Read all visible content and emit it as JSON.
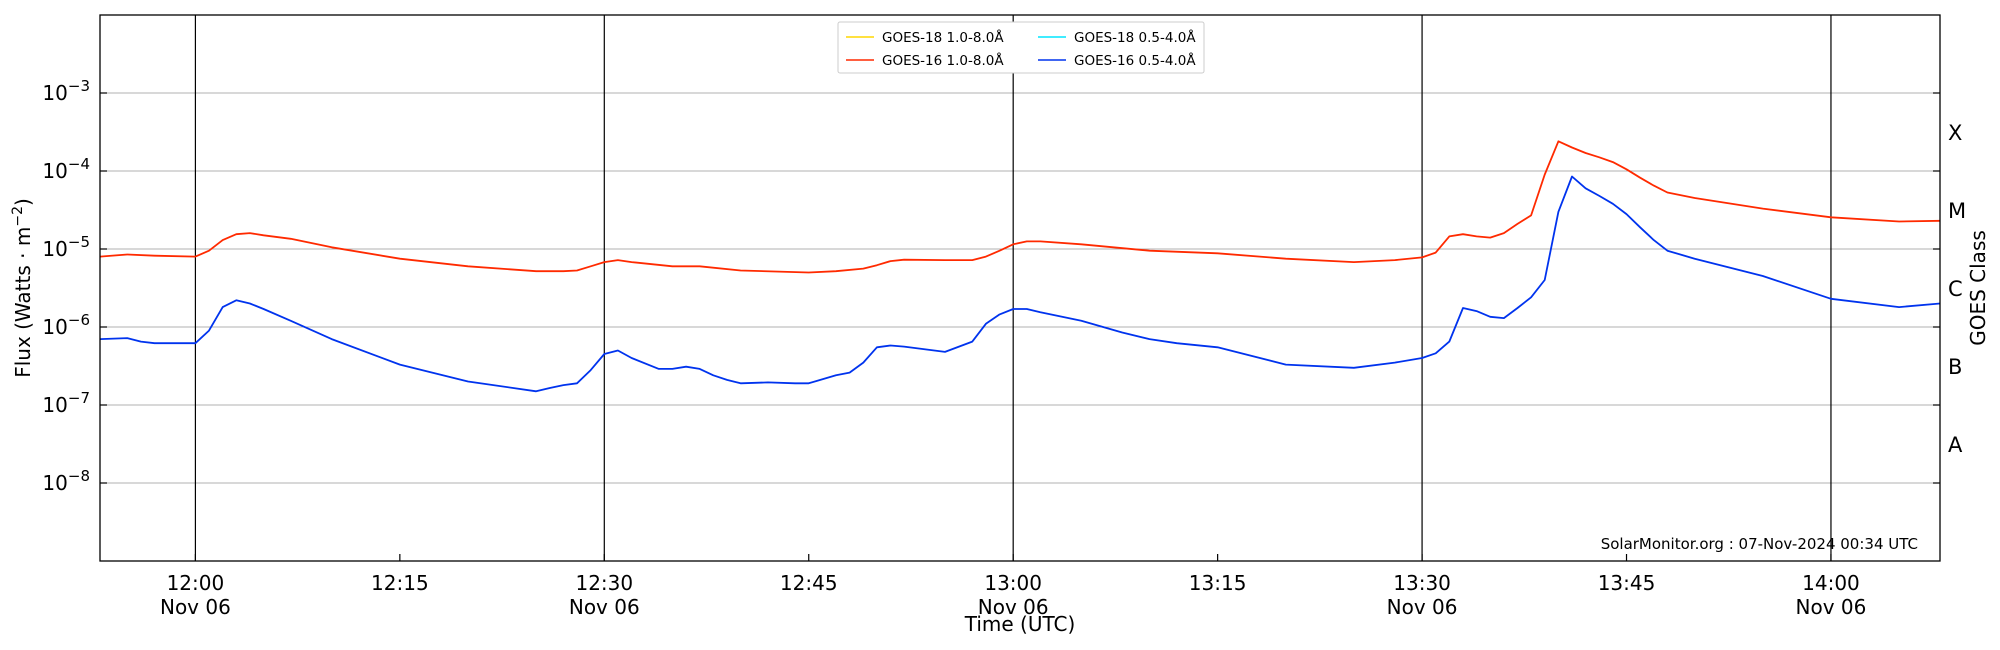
{
  "chart_data": {
    "type": "line",
    "xlabel": "Time (UTC)",
    "ylabel": "Flux (Watts · m⁻²)",
    "y2label": "GOES Class",
    "yscale": "log",
    "ylim": [
      1e-09,
      0.01
    ],
    "xlim": [
      "11:53",
      "14:08"
    ],
    "x_ticks": [
      {
        "time": "12:00",
        "date": "Nov 06"
      },
      {
        "time": "12:15",
        "date": ""
      },
      {
        "time": "12:30",
        "date": "Nov 06"
      },
      {
        "time": "12:45",
        "date": ""
      },
      {
        "time": "13:00",
        "date": "Nov 06"
      },
      {
        "time": "13:15",
        "date": ""
      },
      {
        "time": "13:30",
        "date": "Nov 06"
      },
      {
        "time": "13:45",
        "date": ""
      },
      {
        "time": "14:00",
        "date": "Nov 06"
      }
    ],
    "y_ticks": [
      {
        "value": 1e-08,
        "base": "10",
        "exp": "−8"
      },
      {
        "value": 1e-07,
        "base": "10",
        "exp": "−7"
      },
      {
        "value": 1e-06,
        "base": "10",
        "exp": "−6"
      },
      {
        "value": 1e-05,
        "base": "10",
        "exp": "−5"
      },
      {
        "value": 0.0001,
        "base": "10",
        "exp": "−4"
      },
      {
        "value": 0.001,
        "base": "10",
        "exp": "−3"
      }
    ],
    "goes_classes": [
      {
        "label": "A",
        "value": 1e-08
      },
      {
        "label": "B",
        "value": 1e-07
      },
      {
        "label": "C",
        "value": 1e-06
      },
      {
        "label": "M",
        "value": 1e-05
      },
      {
        "label": "X",
        "value": 0.0001
      }
    ],
    "day_boundaries": [
      "12:00",
      "12:30",
      "13:00",
      "13:30",
      "14:00"
    ],
    "grid": "horizontal",
    "legend_position": "top-center",
    "legend": [
      {
        "name": "GOES-18 1.0-8.0Å",
        "color": "#ffd700"
      },
      {
        "name": "GOES-16 1.0-8.0Å",
        "color": "#ff2a00"
      },
      {
        "name": "GOES-18 0.5-4.0Å",
        "color": "#00e5ff"
      },
      {
        "name": "GOES-16 0.5-4.0Å",
        "color": "#0033ee"
      }
    ],
    "series": [
      {
        "name": "GOES-16 1.0-8.0Å",
        "color": "#ff2a00",
        "x": [
          "11:53",
          "11:55",
          "11:57",
          "12:00",
          "12:01",
          "12:02",
          "12:03",
          "12:04",
          "12:05",
          "12:07",
          "12:10",
          "12:15",
          "12:20",
          "12:25",
          "12:27",
          "12:28",
          "12:29",
          "12:30",
          "12:31",
          "12:32",
          "12:35",
          "12:37",
          "12:40",
          "12:45",
          "12:47",
          "12:49",
          "12:50",
          "12:51",
          "12:52",
          "12:55",
          "12:57",
          "12:58",
          "12:59",
          "13:00",
          "13:01",
          "13:02",
          "13:05",
          "13:10",
          "13:15",
          "13:20",
          "13:25",
          "13:28",
          "13:30",
          "13:31",
          "13:32",
          "13:33",
          "13:34",
          "13:35",
          "13:36",
          "13:37",
          "13:38",
          "13:39",
          "13:40",
          "13:41",
          "13:42",
          "13:43",
          "13:44",
          "13:45",
          "13:46",
          "13:47",
          "13:48",
          "13:50",
          "13:55",
          "14:00",
          "14:05",
          "14:08"
        ],
        "y": [
          8e-06,
          8.5e-06,
          8.2e-06,
          8e-06,
          9.5e-06,
          1.3e-05,
          1.55e-05,
          1.6e-05,
          1.5e-05,
          1.35e-05,
          1.05e-05,
          7.5e-06,
          6e-06,
          5.2e-06,
          5.2e-06,
          5.3e-06,
          6e-06,
          6.8e-06,
          7.2e-06,
          6.8e-06,
          6e-06,
          6e-06,
          5.3e-06,
          5e-06,
          5.2e-06,
          5.6e-06,
          6.2e-06,
          7e-06,
          7.3e-06,
          7.2e-06,
          7.2e-06,
          8e-06,
          9.5e-06,
          1.15e-05,
          1.25e-05,
          1.25e-05,
          1.15e-05,
          9.5e-06,
          8.8e-06,
          7.5e-06,
          6.8e-06,
          7.2e-06,
          7.8e-06,
          9e-06,
          1.45e-05,
          1.55e-05,
          1.45e-05,
          1.4e-05,
          1.6e-05,
          2.1e-05,
          2.7e-05,
          9e-05,
          0.00024,
          0.0002,
          0.00017,
          0.00015,
          0.00013,
          0.000105,
          8.2e-05,
          6.5e-05,
          5.3e-05,
          4.5e-05,
          3.3e-05,
          2.55e-05,
          2.25e-05,
          2.3e-05
        ]
      },
      {
        "name": "GOES-16 0.5-4.0Å",
        "color": "#0033ee",
        "x": [
          "11:53",
          "11:55",
          "11:56",
          "11:57",
          "12:00",
          "12:01",
          "12:02",
          "12:03",
          "12:04",
          "12:05",
          "12:07",
          "12:10",
          "12:15",
          "12:20",
          "12:25",
          "12:26",
          "12:27",
          "12:28",
          "12:29",
          "12:30",
          "12:31",
          "12:32",
          "12:34",
          "12:35",
          "12:36",
          "12:37",
          "12:38",
          "12:39",
          "12:40",
          "12:42",
          "12:44",
          "12:45",
          "12:47",
          "12:48",
          "12:49",
          "12:50",
          "12:51",
          "12:52",
          "12:55",
          "12:57",
          "12:58",
          "12:59",
          "13:00",
          "13:01",
          "13:02",
          "13:05",
          "13:08",
          "13:10",
          "13:12",
          "13:15",
          "13:20",
          "13:25",
          "13:28",
          "13:30",
          "13:31",
          "13:32",
          "13:33",
          "13:34",
          "13:35",
          "13:36",
          "13:37",
          "13:38",
          "13:39",
          "13:40",
          "13:41",
          "13:42",
          "13:43",
          "13:44",
          "13:45",
          "13:46",
          "13:47",
          "13:48",
          "13:50",
          "13:55",
          "14:00",
          "14:05",
          "14:08"
        ],
        "y": [
          7e-07,
          7.2e-07,
          6.5e-07,
          6.2e-07,
          6.2e-07,
          9e-07,
          1.8e-06,
          2.2e-06,
          2e-06,
          1.7e-06,
          1.2e-06,
          7e-07,
          3.3e-07,
          2e-07,
          1.5e-07,
          1.65e-07,
          1.8e-07,
          1.9e-07,
          2.8e-07,
          4.5e-07,
          5e-07,
          4e-07,
          2.9e-07,
          2.9e-07,
          3.1e-07,
          2.9e-07,
          2.4e-07,
          2.1e-07,
          1.9e-07,
          1.95e-07,
          1.9e-07,
          1.9e-07,
          2.4e-07,
          2.6e-07,
          3.5e-07,
          5.5e-07,
          5.8e-07,
          5.6e-07,
          4.8e-07,
          6.5e-07,
          1.1e-06,
          1.45e-06,
          1.7e-06,
          1.7e-06,
          1.55e-06,
          1.2e-06,
          8.5e-07,
          7e-07,
          6.2e-07,
          5.5e-07,
          3.3e-07,
          3e-07,
          3.5e-07,
          4e-07,
          4.6e-07,
          6.5e-07,
          1.75e-06,
          1.6e-06,
          1.35e-06,
          1.3e-06,
          1.75e-06,
          2.4e-06,
          4e-06,
          3e-05,
          8.5e-05,
          6e-05,
          4.8e-05,
          3.8e-05,
          2.8e-05,
          1.9e-05,
          1.3e-05,
          9.5e-06,
          7.5e-06,
          4.5e-06,
          2.3e-06,
          1.8e-06,
          2e-06
        ]
      }
    ]
  },
  "credit": "SolarMonitor.org : 07-Nov-2024 00:34 UTC"
}
